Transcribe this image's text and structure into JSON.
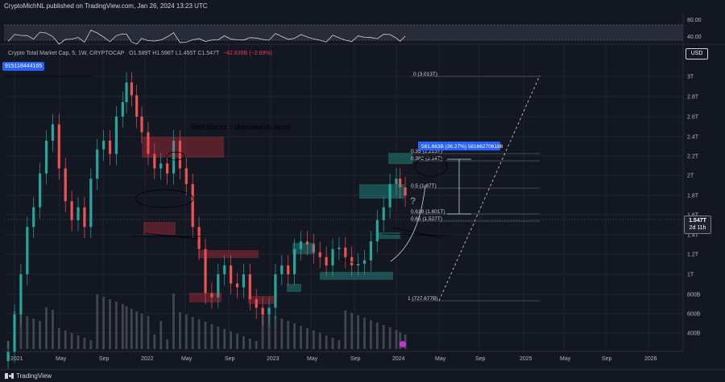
{
  "header": {
    "published_by": "CryptoMichNL published on TradingView.com, Jan 26, 2024 13:23 UTC"
  },
  "legend": {
    "symbol": "Crypto Total Market Cap, 5, 1W, CRYPTOCAP",
    "ohlc": "O1.589T H1.596T L1.455T C1.547T",
    "change": "−42.839B (−2.69%)"
  },
  "badge": "915118444165",
  "price_axis": {
    "currency_button": "USD",
    "current_price": "1.547T",
    "countdown": "2d 11h",
    "ticks": [
      "3T",
      "2.8T",
      "2.6T",
      "2.4T",
      "2.2T",
      "2T",
      "1.8T",
      "1.6T",
      "1.4T",
      "1.2T",
      "1T",
      "800B",
      "600B",
      "400B"
    ]
  },
  "rsi_axis": {
    "ticks": [
      "80.00",
      "40.00"
    ]
  },
  "time_axis": {
    "ticks": [
      "2021",
      "May",
      "Sep",
      "2022",
      "May",
      "Sep",
      "2023",
      "May",
      "Sep",
      "2024",
      "May",
      "Sep",
      "2025",
      "May",
      "Sep",
      "2026"
    ]
  },
  "annotations": {
    "note": "Red blocks = downwards trend.",
    "question_mark": "?",
    "range_box": "581.663B (36.27%) 581662706186"
  },
  "fib_levels": [
    {
      "label": "0 (3.013T)"
    },
    {
      "label": "0.35 (2.213T)"
    },
    {
      "label": "0.382 (2.14T)"
    },
    {
      "label": "0.5 (1.87T)"
    },
    {
      "label": "0.618 (1.601T)"
    },
    {
      "label": "0.65 (1.527T)"
    },
    {
      "label": "1 (727.677B)"
    }
  ],
  "footer": {
    "brand": "TradingView"
  },
  "chart_data": {
    "type": "candlestick",
    "title": "Crypto Total Market Cap, 5, 1W, CRYPTOCAP",
    "x_ticks": [
      "2021",
      "May",
      "Sep",
      "2022",
      "May",
      "Sep",
      "2023",
      "May",
      "Sep",
      "2024",
      "May",
      "Sep",
      "2025",
      "May",
      "Sep",
      "2026"
    ],
    "y_unit": "USD",
    "y_scale": "log",
    "ylim": [
      330000000000,
      3400000000000
    ],
    "last": {
      "open": 1589,
      "high": 1596,
      "low": 1455,
      "close": 1547,
      "unit": "B"
    },
    "series": [
      {
        "name": "price_close_B",
        "points": [
          [
            2020.95,
            650
          ],
          [
            2021.0,
            800
          ],
          [
            2021.05,
            1000
          ],
          [
            2021.1,
            1300
          ],
          [
            2021.15,
            1450
          ],
          [
            2021.2,
            1750
          ],
          [
            2021.25,
            2100
          ],
          [
            2021.3,
            2300
          ],
          [
            2021.35,
            1800
          ],
          [
            2021.4,
            1500
          ],
          [
            2021.45,
            1350
          ],
          [
            2021.5,
            1450
          ],
          [
            2021.55,
            1300
          ],
          [
            2021.6,
            1700
          ],
          [
            2021.65,
            2000
          ],
          [
            2021.7,
            2100
          ],
          [
            2021.75,
            1950
          ],
          [
            2021.8,
            2400
          ],
          [
            2021.85,
            2600
          ],
          [
            2021.88,
            2900
          ],
          [
            2021.92,
            2700
          ],
          [
            2021.96,
            2400
          ],
          [
            2022.0,
            2200
          ],
          [
            2022.05,
            1950
          ],
          [
            2022.1,
            1800
          ],
          [
            2022.15,
            1850
          ],
          [
            2022.2,
            1750
          ],
          [
            2022.25,
            2100
          ],
          [
            2022.3,
            1800
          ],
          [
            2022.35,
            1650
          ],
          [
            2022.4,
            1300
          ],
          [
            2022.45,
            1150
          ],
          [
            2022.5,
            900
          ],
          [
            2022.55,
            880
          ],
          [
            2022.6,
            1000
          ],
          [
            2022.65,
            1050
          ],
          [
            2022.7,
            950
          ],
          [
            2022.75,
            930
          ],
          [
            2022.8,
            1000
          ],
          [
            2022.85,
            870
          ],
          [
            2022.9,
            830
          ],
          [
            2022.95,
            800
          ],
          [
            2023.0,
            830
          ],
          [
            2023.05,
            1000
          ],
          [
            2023.1,
            1050
          ],
          [
            2023.15,
            1000
          ],
          [
            2023.2,
            1150
          ],
          [
            2023.25,
            1200
          ],
          [
            2023.3,
            1180
          ],
          [
            2023.35,
            1130
          ],
          [
            2023.4,
            1100
          ],
          [
            2023.45,
            1050
          ],
          [
            2023.5,
            1150
          ],
          [
            2023.55,
            1160
          ],
          [
            2023.6,
            1100
          ],
          [
            2023.65,
            1050
          ],
          [
            2023.7,
            1060
          ],
          [
            2023.75,
            1080
          ],
          [
            2023.8,
            1200
          ],
          [
            2023.85,
            1350
          ],
          [
            2023.9,
            1450
          ],
          [
            2023.95,
            1650
          ],
          [
            2024.0,
            1700
          ],
          [
            2024.03,
            1620
          ],
          [
            2024.07,
            1547
          ]
        ]
      },
      {
        "name": "RSI",
        "ylim": [
          30,
          90
        ]
      }
    ]
  }
}
